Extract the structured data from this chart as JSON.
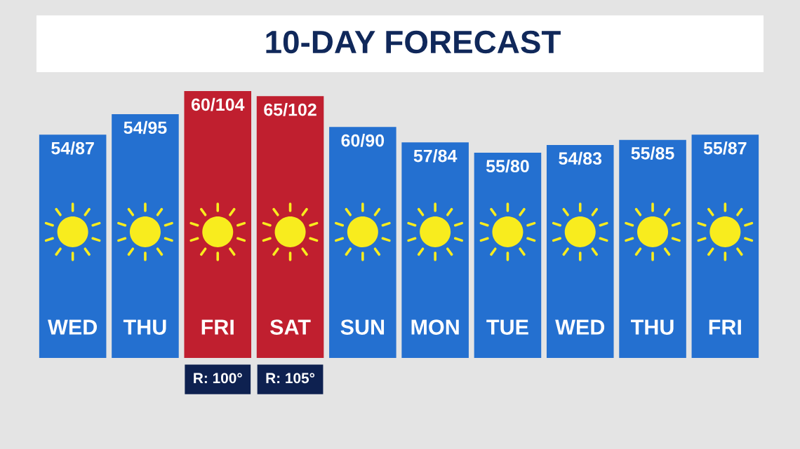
{
  "chart_data": {
    "type": "bar",
    "title": "10-DAY FORECAST",
    "categories": [
      "WED",
      "THU",
      "FRI",
      "SAT",
      "SUN",
      "MON",
      "TUE",
      "WED",
      "THU",
      "FRI"
    ],
    "values": [
      87,
      95,
      104,
      102,
      90,
      84,
      80,
      83,
      85,
      87
    ],
    "value_labels": [
      "54/87",
      "54/95",
      "60/104",
      "65/102",
      "60/90",
      "57/84",
      "55/80",
      "54/83",
      "55/85",
      "55/87"
    ],
    "colors": [
      "#2470d0",
      "#2470d0",
      "#c01f2f",
      "#c01f2f",
      "#2470d0",
      "#2470d0",
      "#2470d0",
      "#2470d0",
      "#2470d0",
      "#2470d0"
    ],
    "annotations": [
      "R: 100°",
      "R: 105°"
    ],
    "tick_labels": "x",
    "grid": false,
    "legend": false
  }
}
